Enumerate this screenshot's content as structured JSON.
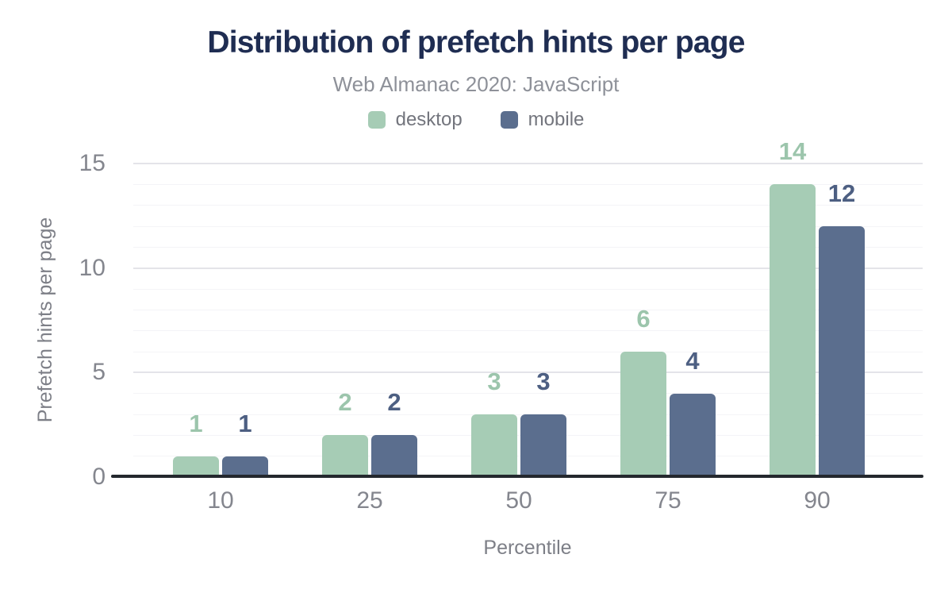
{
  "chart_data": {
    "type": "bar",
    "title": "Distribution of prefetch hints per page",
    "subtitle": "Web Almanac 2020: JavaScript",
    "xlabel": "Percentile",
    "ylabel": "Prefetch hints per page",
    "categories": [
      "10",
      "25",
      "50",
      "75",
      "90"
    ],
    "series": [
      {
        "name": "desktop",
        "color": "#a6ccb5",
        "label_color": "#9cc5ac",
        "values": [
          1,
          2,
          3,
          6,
          14
        ]
      },
      {
        "name": "mobile",
        "color": "#5b6e8e",
        "label_color": "#4d5f82",
        "values": [
          1,
          2,
          3,
          4,
          12
        ]
      }
    ],
    "ylim": [
      0,
      15
    ],
    "yticks": [
      0,
      5,
      10,
      15
    ],
    "grid": {
      "minor_step": 1,
      "major_step": 5,
      "visible": true
    },
    "legend_position": "top",
    "bar_value_labels_shown": true,
    "colors": {
      "title": "#1f2d52",
      "subtitle": "#8e9199",
      "tick_labels": "#84868e",
      "axis_titles": "#7d7f87",
      "legend_labels": "#73757d",
      "axis_line": "#24282e",
      "gridline_minor": "#f4f4f7",
      "gridline_major": "#e4e4e9",
      "background": "#ffffff"
    }
  }
}
